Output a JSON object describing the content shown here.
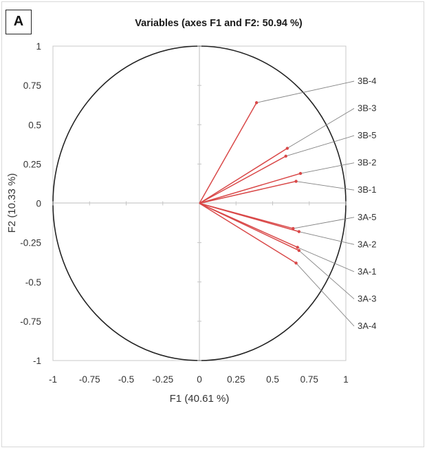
{
  "panel_label": "A",
  "chart_data": {
    "type": "scatter",
    "subtype": "pca-correlation-circle",
    "title": "Variables (axes F1 and F2: 50.94 %)",
    "xlabel": "F1 (40.61 %)",
    "ylabel": "F2 (10.33 %)",
    "xlim": [
      -1,
      1
    ],
    "ylim": [
      -1,
      1
    ],
    "xticks": [
      "-1",
      "-0.75",
      "-0.5",
      "-0.25",
      "0",
      "0.25",
      "0.5",
      "0.75",
      "1"
    ],
    "yticks": [
      "1",
      "0.75",
      "0.5",
      "0.25",
      "0",
      "-0.25",
      "-0.5",
      "-0.75",
      "-1"
    ],
    "grid": false,
    "unit_circle": true,
    "colors": {
      "vector": "#d94848",
      "leader": "#808080",
      "circle": "#222222",
      "axis": "#bdbdbd"
    },
    "series": [
      {
        "name": "3B-4",
        "x": 0.39,
        "y": 0.64
      },
      {
        "name": "3B-3",
        "x": 0.6,
        "y": 0.35
      },
      {
        "name": "3B-5",
        "x": 0.59,
        "y": 0.3
      },
      {
        "name": "3B-2",
        "x": 0.69,
        "y": 0.19
      },
      {
        "name": "3B-1",
        "x": 0.66,
        "y": 0.14
      },
      {
        "name": "3A-5",
        "x": 0.64,
        "y": -0.16
      },
      {
        "name": "3A-2",
        "x": 0.68,
        "y": -0.18
      },
      {
        "name": "3A-1",
        "x": 0.67,
        "y": -0.28
      },
      {
        "name": "3A-3",
        "x": 0.68,
        "y": -0.3
      },
      {
        "name": "3A-4",
        "x": 0.66,
        "y": -0.38
      }
    ]
  }
}
